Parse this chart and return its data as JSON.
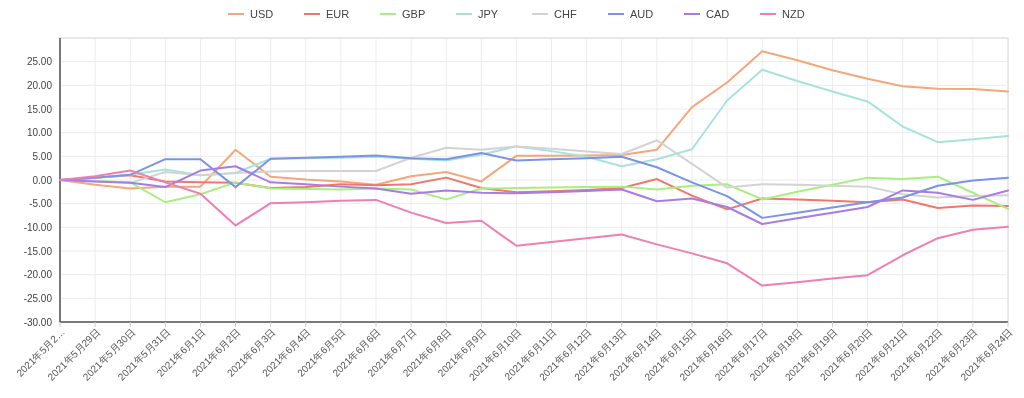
{
  "chart_data": {
    "type": "line",
    "legend": "top",
    "grid": true,
    "marker": "none",
    "categories": [
      "2021年5月2…",
      "2021年5月29日",
      "2021年5月30日",
      "2021年5月31日",
      "2021年6月1日",
      "2021年6月2日",
      "2021年6月3日",
      "2021年6月4日",
      "2021年6月5日",
      "2021年6月6日",
      "2021年6月7日",
      "2021年6月8日",
      "2021年6月9日",
      "2021年6月10日",
      "2021年6月11日",
      "2021年6月12日",
      "2021年6月13日",
      "2021年6月14日",
      "2021年6月15日",
      "2021年6月16日",
      "2021年6月17日",
      "2021年6月18日",
      "2021年6月19日",
      "2021年6月20日",
      "2021年6月21日",
      "2021年6月22日",
      "2021年6月23日",
      "2021年6月24日"
    ],
    "ylim": [
      -30,
      30
    ],
    "yticks": [
      {
        "value": 30,
        "label": null
      },
      {
        "value": 25,
        "label": "25.00"
      },
      {
        "value": 20,
        "label": "20.00"
      },
      {
        "value": 15,
        "label": "15.00"
      },
      {
        "value": 10,
        "label": "10.00"
      },
      {
        "value": 5,
        "label": "5.00"
      },
      {
        "value": 0,
        "label": "0.00"
      },
      {
        "value": -5,
        "label": "-5.00"
      },
      {
        "value": -10,
        "label": "-10.00"
      },
      {
        "value": -15,
        "label": "-15.00"
      },
      {
        "value": -20,
        "label": "-20.00"
      },
      {
        "value": -25,
        "label": "-25.00"
      },
      {
        "value": -30,
        "label": "-30.00"
      }
    ],
    "series": [
      {
        "name": "USD",
        "color": "#f4a77a",
        "values": [
          0,
          -1,
          -1.8,
          -1.4,
          -1.4,
          6.4,
          0.7,
          0.1,
          -0.3,
          -1,
          0.8,
          1.7,
          -0.3,
          5.1,
          5.1,
          5.2,
          5.3,
          6.4,
          15.4,
          20.6,
          27.2,
          25.3,
          23.2,
          21.4,
          19.8,
          19.3,
          19.2,
          18.7
        ]
      },
      {
        "name": "EUR",
        "color": "#f0776a",
        "values": [
          0,
          0.5,
          1,
          -0.3,
          -0.5,
          -0.6,
          -1.7,
          -1.5,
          -0.9,
          -1.1,
          -0.9,
          0.5,
          -1.7,
          -2.6,
          -2.4,
          -2.1,
          -1.7,
          0.2,
          -3.3,
          -6.2,
          -3.9,
          -4.1,
          -4.4,
          -4.7,
          -4.1,
          -5.9,
          -5.4,
          -5.5
        ]
      },
      {
        "name": "GBP",
        "color": "#a8ef80",
        "values": [
          0,
          -0.2,
          -0.5,
          -4.7,
          -3,
          -0.5,
          -1.8,
          -1.9,
          -2,
          -1.8,
          -2,
          -4.1,
          -1.8,
          -1.7,
          -1.6,
          -1.5,
          -1.4,
          -2,
          -1.2,
          -0.9,
          -4.1,
          -2.5,
          -1,
          0.5,
          0.2,
          0.7,
          -2.7,
          -6.1
        ]
      },
      {
        "name": "JPY",
        "color": "#a6e3da",
        "values": [
          0,
          0.5,
          1.1,
          2.2,
          1,
          1.5,
          4.5,
          4.6,
          4.7,
          4.9,
          4.5,
          4.1,
          5.4,
          7.1,
          6.1,
          4.9,
          2.9,
          4.4,
          6.5,
          16.8,
          23.3,
          20.9,
          18.7,
          16.6,
          11.3,
          8,
          8.6,
          9.3
        ]
      },
      {
        "name": "CHF",
        "color": "#d3d3d3",
        "values": [
          0,
          -0.3,
          -0.6,
          1.7,
          1,
          1.5,
          1.8,
          1.9,
          1.9,
          1.9,
          4.7,
          6.8,
          6.4,
          7.1,
          6.6,
          6,
          5.5,
          8.4,
          3.4,
          -1.6,
          -0.9,
          -1,
          -1.2,
          -1.4,
          -3,
          -3.7,
          -3.4,
          -3.2
        ]
      },
      {
        "name": "AUD",
        "color": "#7b93e8",
        "values": [
          0,
          0.5,
          1.1,
          4.4,
          4.4,
          -1.5,
          4.5,
          4.7,
          4.9,
          5.2,
          4.6,
          4.4,
          5.7,
          4.1,
          4.4,
          4.6,
          4.9,
          2.7,
          -0.5,
          -3.4,
          -8,
          -6.9,
          -5.8,
          -4.7,
          -3.7,
          -1.2,
          -0.1,
          0.5
        ]
      },
      {
        "name": "CAD",
        "color": "#a77ce8",
        "values": [
          0,
          -0.3,
          -0.6,
          -1.5,
          2,
          2.9,
          -0.5,
          -0.9,
          -1.4,
          -1.8,
          -2.9,
          -2.2,
          -2.7,
          -2.8,
          -2.6,
          -2.3,
          -2,
          -4.5,
          -3.9,
          -5.7,
          -9.3,
          -8.1,
          -6.9,
          -5.7,
          -2.2,
          -2.7,
          -4.2,
          -2.2
        ]
      },
      {
        "name": "NZD",
        "color": "#ef7fb2",
        "values": [
          0,
          0.8,
          2,
          -0.5,
          -2.9,
          -9.6,
          -4.9,
          -4.7,
          -4.4,
          -4.2,
          -6.9,
          -9.1,
          -8.6,
          -13.9,
          -13.1,
          -12.3,
          -11.5,
          -13.6,
          -15.5,
          -17.6,
          -22.3,
          -21.6,
          -20.8,
          -20.1,
          -15.9,
          -12.3,
          -10.5,
          -9.9
        ]
      }
    ]
  }
}
